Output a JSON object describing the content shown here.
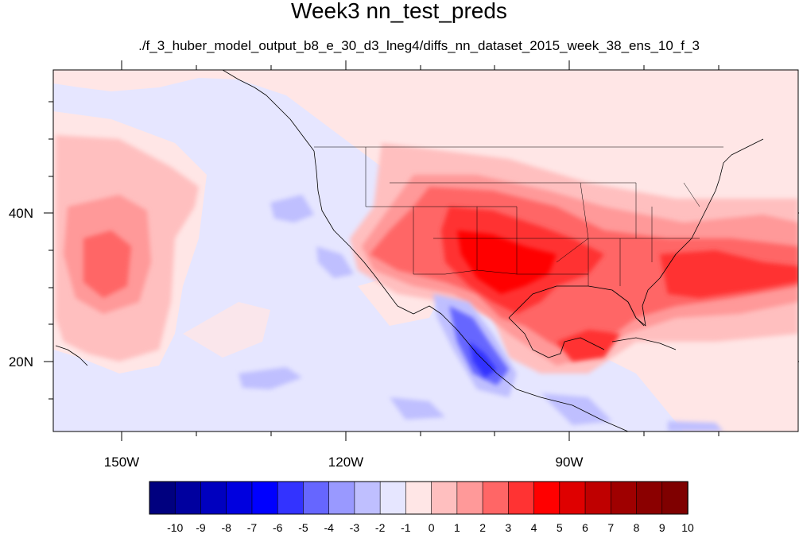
{
  "title": "Week3 nn_test_preds",
  "subtitle": "./f_3_huber_model_output_b8_e_30_d3_lneg4/diffs_nn_dataset_2015_week_38_ens_10_f_3",
  "map": {
    "projection": "cylindrical equidistant",
    "lon_range": [
      -160,
      -62
    ],
    "lat_range": [
      11,
      60
    ],
    "x_ticks": [
      {
        "lon": -150,
        "label": "150W"
      },
      {
        "lon": -120,
        "label": "120W"
      },
      {
        "lon": -90,
        "label": "90W"
      }
    ],
    "y_ticks": [
      {
        "lat": 40,
        "label": "40N"
      },
      {
        "lat": 20,
        "label": "20N"
      }
    ],
    "minor_x_ticks": [
      -140,
      -130,
      -110,
      -100,
      -80,
      -70
    ],
    "minor_y_ticks": [
      15,
      25,
      30,
      35,
      45,
      50,
      55
    ]
  },
  "colorbar": {
    "colors": [
      "#00007f",
      "#00009f",
      "#0000bf",
      "#0000df",
      "#0000ff",
      "#3333ff",
      "#6666ff",
      "#9999ff",
      "#bfbfff",
      "#e6e6ff",
      "#ffe6e6",
      "#ffbfbf",
      "#ff9999",
      "#ff6666",
      "#ff3333",
      "#ff0000",
      "#df0000",
      "#bf0000",
      "#9f0000",
      "#8b0000",
      "#7f0000"
    ],
    "labels": [
      "-10",
      "-9",
      "-8",
      "-7",
      "-6",
      "-5",
      "-4",
      "-3",
      "-2",
      "-1",
      "0",
      "1",
      "2",
      "3",
      "4",
      "5",
      "6",
      "7",
      "8",
      "9",
      "10"
    ]
  }
}
